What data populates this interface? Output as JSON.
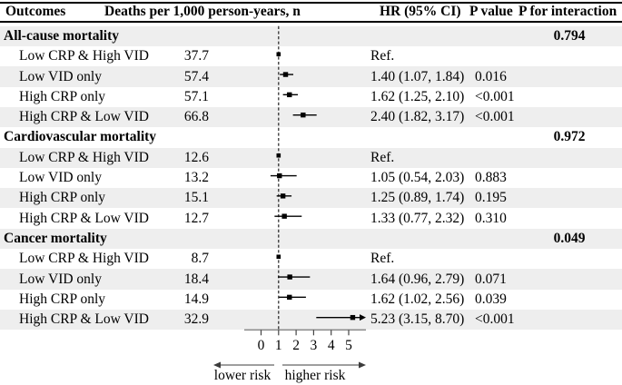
{
  "header": {
    "outcomes": "Outcomes",
    "deaths": "Deaths per 1,000 person-years, n",
    "hr": "HR (95% CI)",
    "p_value": "P value",
    "p_interaction": "P for interaction"
  },
  "colors": {
    "row_shade": "#eeeeee",
    "text": "#000000",
    "marker": "#000000",
    "ci_line": "#000000",
    "reference_line": "#222222",
    "axis_line": "#8f8f8f",
    "tick": "#444444",
    "risk_arrow": "#3c3c3c"
  },
  "chart_data": {
    "type": "forest",
    "x_axis": {
      "ticks": [
        0,
        1,
        2,
        3,
        4,
        5
      ],
      "ref_value": 1,
      "line_range": [
        -0.95,
        6.0
      ]
    },
    "risk_labels": {
      "lower": "lower risk",
      "higher": "higher risk"
    },
    "sections": [
      {
        "label": "All-cause mortality",
        "p_interaction": "0.794",
        "rows": [
          {
            "label": "Low CRP & High VID",
            "deaths": "37.7",
            "hr_text": "Ref.",
            "hr": 1.0,
            "ref": true
          },
          {
            "label": "Low VID only",
            "deaths": "57.4",
            "hr_text": "1.40 (1.07, 1.84)",
            "p": "0.016",
            "hr": 1.4,
            "ci_low": 1.07,
            "ci_high": 1.84
          },
          {
            "label": "High CRP only",
            "deaths": "57.1",
            "hr_text": "1.62 (1.25, 2.10)",
            "p": "<0.001",
            "hr": 1.62,
            "ci_low": 1.25,
            "ci_high": 2.1
          },
          {
            "label": "High CRP & Low VID",
            "deaths": "66.8",
            "hr_text": "2.40 (1.82, 3.17)",
            "p": "<0.001",
            "hr": 2.4,
            "ci_low": 1.82,
            "ci_high": 3.17
          }
        ]
      },
      {
        "label": "Cardiovascular mortality",
        "p_interaction": "0.972",
        "rows": [
          {
            "label": "Low CRP & High VID",
            "deaths": "12.6",
            "hr_text": "Ref.",
            "hr": 1.0,
            "ref": true
          },
          {
            "label": "Low VID only",
            "deaths": "13.2",
            "hr_text": "1.05 (0.54, 2.03)",
            "p": "0.883",
            "hr": 1.05,
            "ci_low": 0.54,
            "ci_high": 2.03
          },
          {
            "label": "High CRP only",
            "deaths": "15.1",
            "hr_text": "1.25 (0.89, 1.74)",
            "p": "0.195",
            "hr": 1.25,
            "ci_low": 0.89,
            "ci_high": 1.74
          },
          {
            "label": "High CRP & Low VID",
            "deaths": "12.7",
            "hr_text": "1.33 (0.77, 2.32)",
            "p": "0.310",
            "hr": 1.33,
            "ci_low": 0.77,
            "ci_high": 2.32
          }
        ]
      },
      {
        "label": "Cancer mortality",
        "p_interaction": "0.049",
        "rows": [
          {
            "label": "Low CRP & High VID",
            "deaths": "8.7",
            "hr_text": "Ref.",
            "hr": 1.0,
            "ref": true
          },
          {
            "label": "Low VID only",
            "deaths": "18.4",
            "hr_text": "1.64 (0.96, 2.79)",
            "p": "0.071",
            "hr": 1.64,
            "ci_low": 0.96,
            "ci_high": 2.79
          },
          {
            "label": "High CRP only",
            "deaths": "14.9",
            "hr_text": "1.62 (1.02, 2.56)",
            "p": "0.039",
            "hr": 1.62,
            "ci_low": 1.02,
            "ci_high": 2.56
          },
          {
            "label": "High CRP & Low VID",
            "deaths": "32.9",
            "hr_text": "5.23 (3.15, 8.70)",
            "p": "<0.001",
            "hr": 5.23,
            "ci_low": 3.15,
            "ci_high": 8.7,
            "clipped": true
          }
        ]
      }
    ]
  }
}
